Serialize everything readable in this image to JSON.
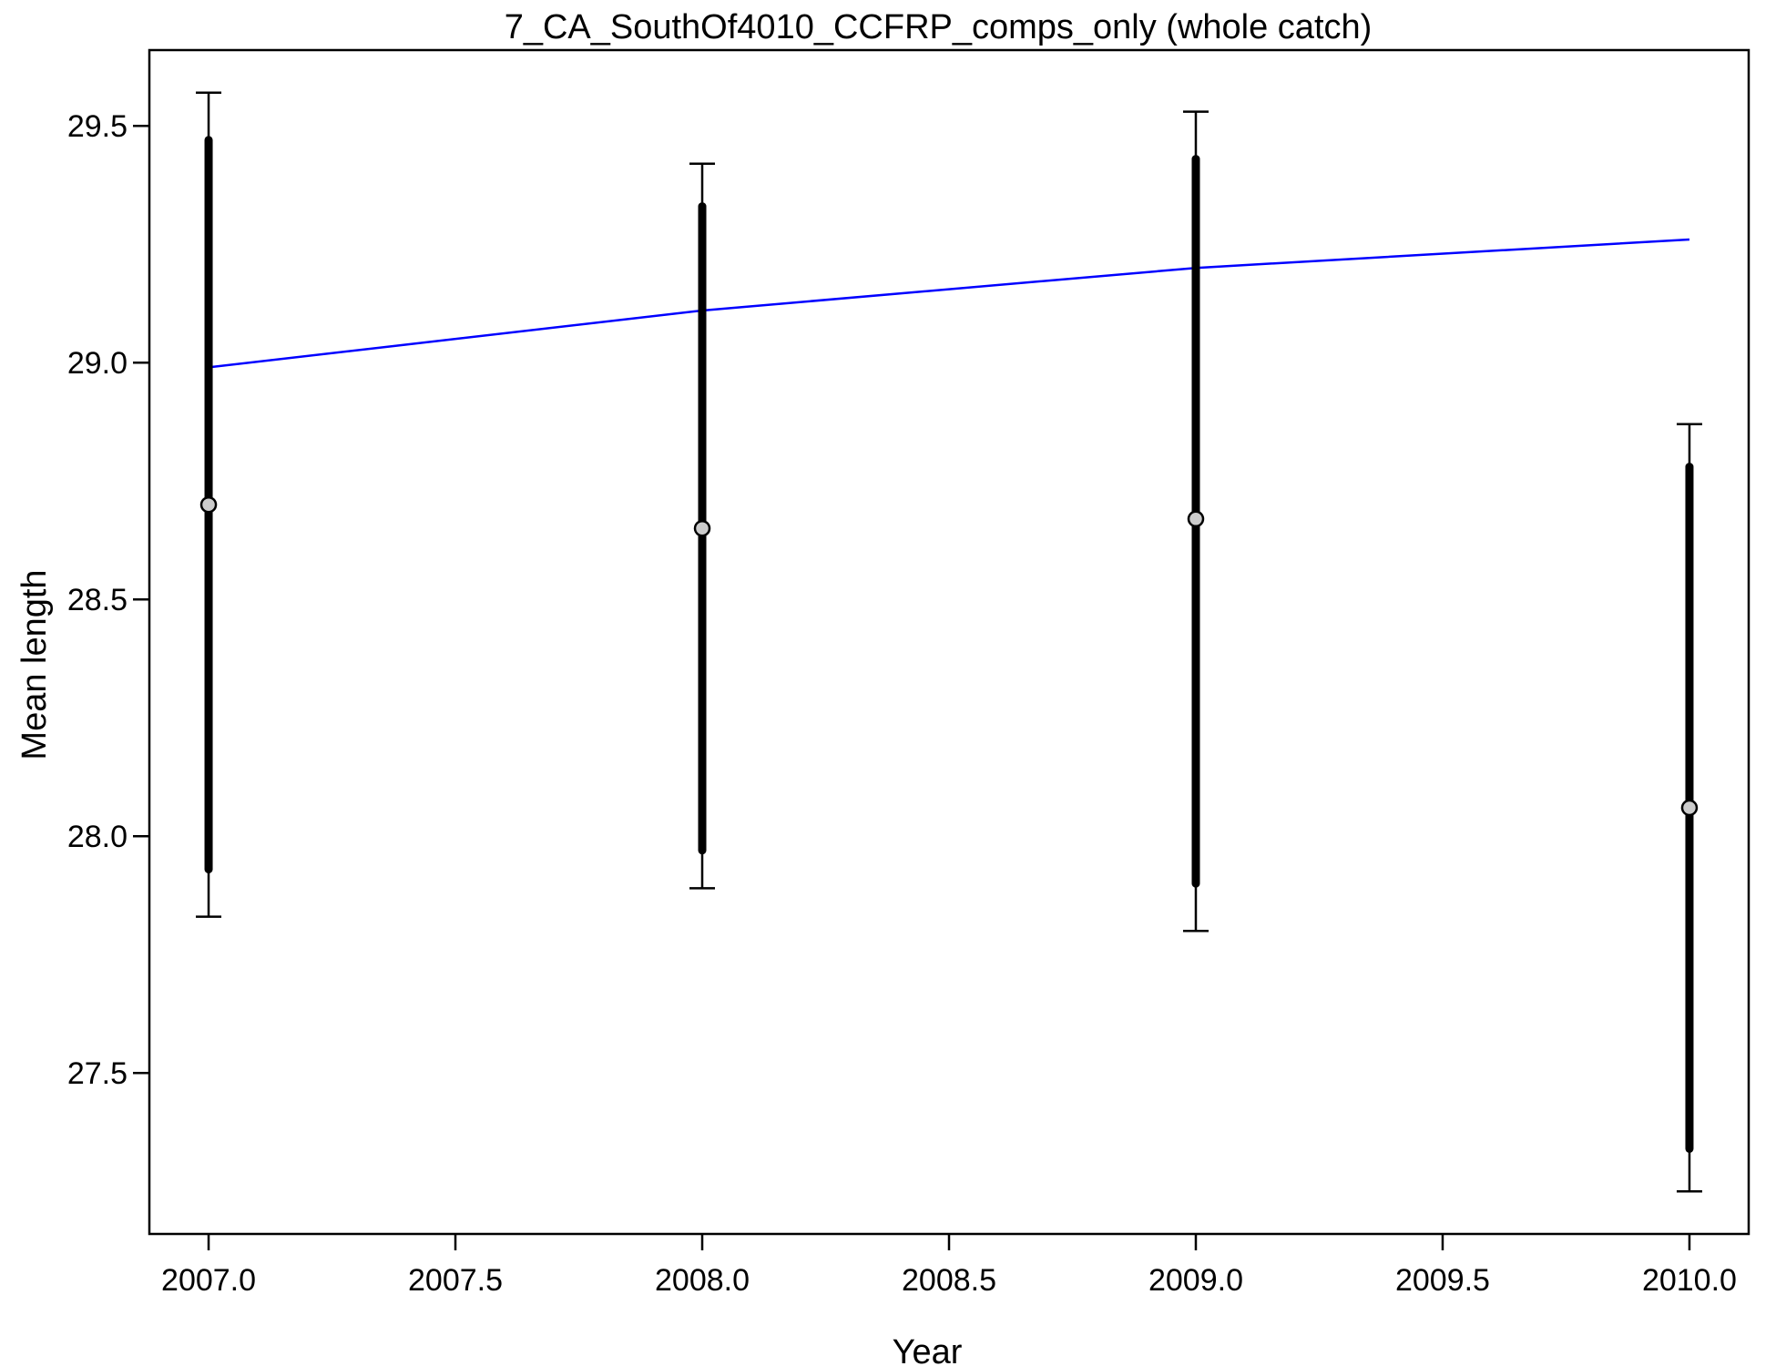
{
  "chart_data": {
    "type": "scatter",
    "title": "7_CA_SouthOf4010_CCFRP_comps_only (whole catch)",
    "xlabel": "Year",
    "ylabel": "Mean length",
    "xlim": [
      2006.88,
      2010.12
    ],
    "ylim": [
      27.16,
      29.66
    ],
    "x_ticks": [
      2007.0,
      2007.5,
      2008.0,
      2008.5,
      2009.0,
      2009.5,
      2010.0
    ],
    "x_tick_labels": [
      "2007.0",
      "2007.5",
      "2008.0",
      "2008.5",
      "2009.0",
      "2009.5",
      "2010.0"
    ],
    "y_ticks": [
      27.5,
      28.0,
      28.5,
      29.0,
      29.5
    ],
    "y_tick_labels": [
      "27.5",
      "28.0",
      "28.5",
      "29.0",
      "29.5"
    ],
    "grid": false,
    "observed": {
      "x": [
        2007,
        2008,
        2009,
        2010
      ],
      "y": [
        28.7,
        28.65,
        28.67,
        28.06
      ],
      "inner_lower": [
        27.93,
        27.97,
        27.9,
        27.34
      ],
      "inner_upper": [
        29.47,
        29.33,
        29.43,
        28.78
      ],
      "outer_lower": [
        27.83,
        27.89,
        27.8,
        27.25
      ],
      "outer_upper": [
        29.57,
        29.42,
        29.53,
        28.87
      ],
      "point_color": "#cccccc",
      "bar_color": "#000000"
    },
    "expected": {
      "x": [
        2007,
        2008,
        2009,
        2010
      ],
      "y": [
        28.99,
        29.11,
        29.2,
        29.26
      ],
      "color": "#0000ff"
    }
  }
}
